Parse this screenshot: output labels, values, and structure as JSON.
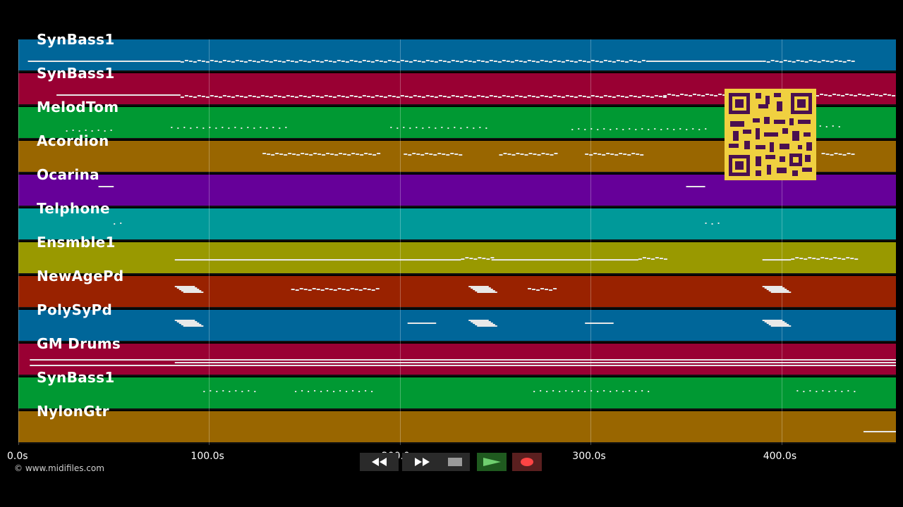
{
  "tracks": [
    {
      "name": "SynBass1",
      "color": "#006699"
    },
    {
      "name": "SynBass1",
      "color": "#990033"
    },
    {
      "name": "MelodTom",
      "color": "#009933"
    },
    {
      "name": "Acordion",
      "color": "#996600"
    },
    {
      "name": "Ocarina",
      "color": "#660099"
    },
    {
      "name": "Telphone",
      "color": "#009999"
    },
    {
      "name": "Ensmble1",
      "color": "#999900"
    },
    {
      "name": "NewAgePd",
      "color": "#992200"
    },
    {
      "name": "PolySyPd",
      "color": "#006699"
    },
    {
      "name": "GM Drums",
      "color": "#990033"
    },
    {
      "name": "SynBass1",
      "color": "#009933"
    },
    {
      "name": "NylonGtr",
      "color": "#996600"
    }
  ],
  "axis": {
    "ticks": [
      "0.0s",
      "100.0s",
      "200.0s",
      "300.0s",
      "400.0s"
    ],
    "tick_values": [
      0,
      100,
      200,
      300,
      400
    ],
    "max_seconds": 460
  },
  "transport": {
    "rewind_icon": "rewind-icon",
    "fast_forward_icon": "fast-forward-icon",
    "stop_icon": "stop-icon",
    "play_icon": "play-icon",
    "record_icon": "record-icon"
  },
  "footer": {
    "copyright": "© www.midifiles.com"
  },
  "qr_code": {
    "colors": {
      "fg": "#4a1050",
      "bg": "#f0d040"
    }
  }
}
